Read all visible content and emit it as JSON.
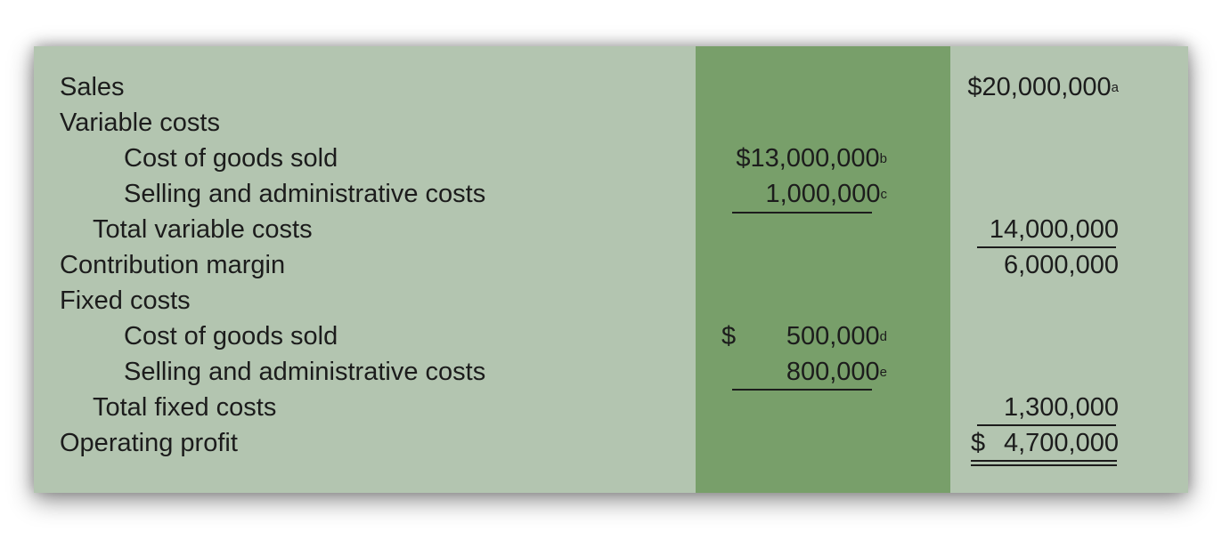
{
  "rows": {
    "sales": {
      "label": "Sales",
      "right": "$20,000,000",
      "right_note": "a"
    },
    "variable_costs": {
      "label": "Variable costs"
    },
    "var_cogs": {
      "label": "Cost of goods sold",
      "mid": "$13,000,000",
      "mid_note": "b"
    },
    "var_sga": {
      "label": "Selling and administrative costs",
      "mid": "1,000,000",
      "mid_note": "c"
    },
    "total_variable": {
      "label": "Total variable costs",
      "right": "14,000,000"
    },
    "contribution_margin": {
      "label": "Contribution margin",
      "right": "6,000,000"
    },
    "fixed_costs": {
      "label": "Fixed costs"
    },
    "fixed_cogs": {
      "label": "Cost of goods sold",
      "mid_dollar": "$",
      "mid": "500,000",
      "mid_note": "d"
    },
    "fixed_sga": {
      "label": "Selling and administrative costs",
      "mid": "800,000",
      "mid_note": "e"
    },
    "total_fixed": {
      "label": "Total fixed costs",
      "right": "1,300,000"
    },
    "operating_profit": {
      "label": "Operating profit",
      "right_dollar": "$",
      "right": "4,700,000"
    }
  },
  "colors": {
    "panel_background": "#b3c5b0",
    "middle_column": "#789f6a",
    "text": "#1c1c1c"
  }
}
